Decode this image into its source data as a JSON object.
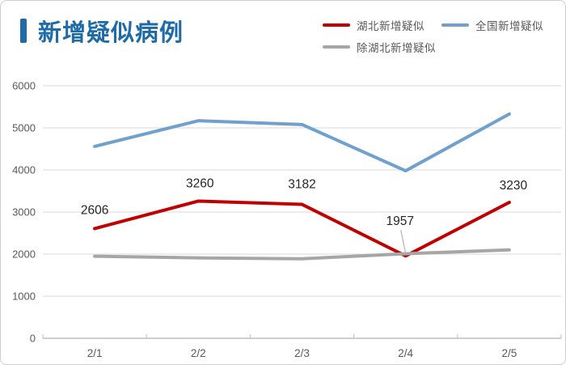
{
  "title": {
    "text": "新增疑似病例"
  },
  "colors": {
    "title": "#1e6ba8",
    "hubei": "#c00000",
    "national": "#6fa0ce",
    "exhubei": "#a6a6a6",
    "grid": "#d9d9d9",
    "axis": "#bfbfbf",
    "axis_text": "#595959",
    "label_text": "#262626",
    "leader": "#b3b3b3"
  },
  "legend": {
    "items": [
      {
        "key": "hubei",
        "label": "湖北新增疑似"
      },
      {
        "key": "national",
        "label": "全国新增疑似"
      },
      {
        "key": "exhubei",
        "label": "除湖北新增疑似"
      }
    ]
  },
  "chart_data": {
    "type": "line",
    "title": "新增疑似病例",
    "categories": [
      "2/1",
      "2/2",
      "2/3",
      "2/4",
      "2/5"
    ],
    "series": [
      {
        "name": "湖北新增疑似",
        "color_key": "hubei",
        "values": [
          2606,
          3260,
          3182,
          1957,
          3230
        ],
        "show_labels": true
      },
      {
        "name": "全国新增疑似",
        "color_key": "national",
        "values": [
          4560,
          5170,
          5080,
          3980,
          5330
        ],
        "show_labels": false
      },
      {
        "name": "除湖北新增疑似",
        "color_key": "exhubei",
        "values": [
          1950,
          1910,
          1890,
          2010,
          2100
        ],
        "show_labels": false
      }
    ],
    "ylim": [
      0,
      6000
    ],
    "yticks": [
      0,
      1000,
      2000,
      3000,
      4000,
      5000,
      6000
    ],
    "grid": "horizontal",
    "legend_position": "top-right"
  }
}
